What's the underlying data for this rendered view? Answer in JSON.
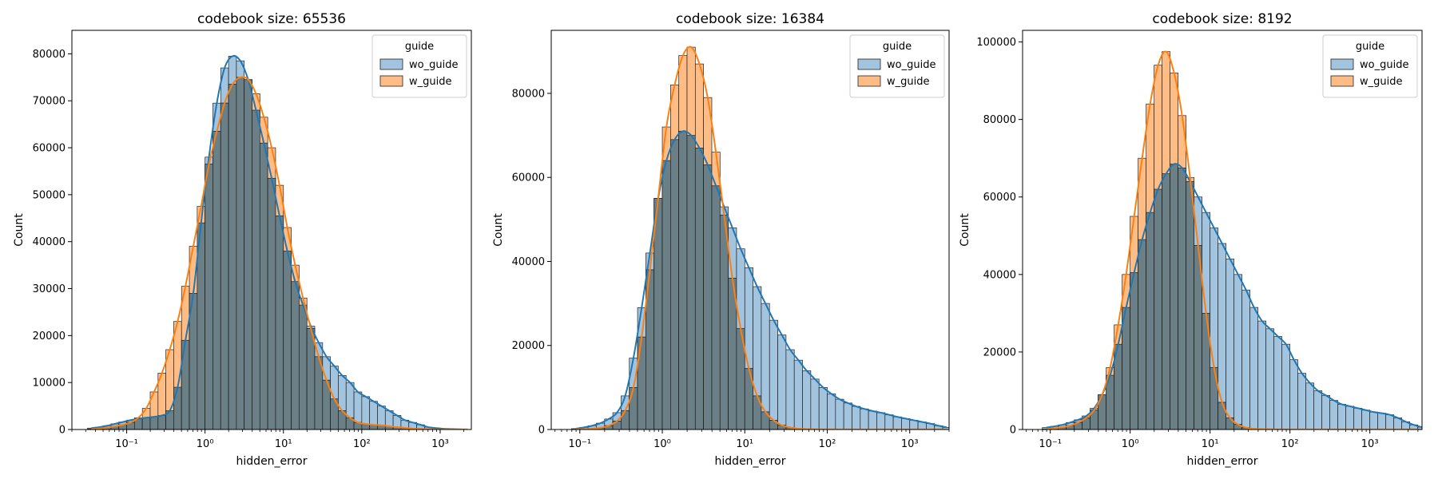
{
  "chart_data": [
    {
      "type": "histogram",
      "title": "codebook size: 65536",
      "xlabel": "hidden_error",
      "ylabel": "Count",
      "xscale": "log",
      "xlim": [
        0.02,
        2500
      ],
      "ylim": [
        0,
        85000
      ],
      "yticks": [
        0,
        10000,
        20000,
        30000,
        40000,
        50000,
        60000,
        70000,
        80000
      ],
      "xticks": [
        {
          "value": 0.1,
          "label": "10⁻¹"
        },
        {
          "value": 1,
          "label": "10⁰"
        },
        {
          "value": 10,
          "label": "10¹"
        },
        {
          "value": 100,
          "label": "10²"
        },
        {
          "value": 1000,
          "label": "10³"
        }
      ],
      "legend": {
        "title": "guide",
        "placement": "top-right",
        "entries": [
          "wo_guide",
          "w_guide"
        ]
      },
      "series": [
        {
          "name": "wo_guide",
          "color": "#1f77b4",
          "bins_log10_start": -1.5,
          "bin_width_log10": 0.1,
          "counts": [
            300,
            500,
            800,
            1200,
            1600,
            2000,
            2300,
            2500,
            2700,
            3000,
            4000,
            9000,
            19000,
            29000,
            44000,
            58000,
            69500,
            77000,
            79500,
            78500,
            74500,
            68000,
            61000,
            53500,
            45500,
            38000,
            31500,
            26500,
            22000,
            18500,
            15500,
            13500,
            11500,
            10000,
            8000,
            7000,
            6000,
            5000,
            4000,
            3000,
            2000,
            1500,
            1000,
            500,
            300,
            150,
            80,
            40,
            20
          ]
        },
        {
          "name": "w_guide",
          "color": "#ff7f0e",
          "bins_log10_start": -1.5,
          "bin_width_log10": 0.1,
          "counts": [
            100,
            200,
            400,
            700,
            1000,
            1500,
            2500,
            4500,
            8000,
            12000,
            17000,
            23000,
            30500,
            39000,
            47500,
            56500,
            63500,
            69500,
            73500,
            75000,
            74500,
            71500,
            66500,
            60000,
            52000,
            43000,
            35000,
            28000,
            21500,
            15500,
            10500,
            6500,
            4000,
            2500,
            1500,
            1200,
            1000,
            900,
            700,
            500,
            350,
            200,
            120,
            60,
            30,
            15,
            8,
            4,
            2
          ]
        }
      ]
    },
    {
      "type": "histogram",
      "title": "codebook size: 16384",
      "xlabel": "hidden_error",
      "ylabel": "Count",
      "xscale": "log",
      "xlim": [
        0.045,
        3000
      ],
      "ylim": [
        0,
        95000
      ],
      "yticks": [
        0,
        20000,
        40000,
        60000,
        80000
      ],
      "xticks": [
        {
          "value": 0.1,
          "label": "10⁻¹"
        },
        {
          "value": 1,
          "label": "10⁰"
        },
        {
          "value": 10,
          "label": "10¹"
        },
        {
          "value": 100,
          "label": "10²"
        },
        {
          "value": 1000,
          "label": "10³"
        }
      ],
      "legend": {
        "title": "guide",
        "placement": "top-right",
        "entries": [
          "wo_guide",
          "w_guide"
        ]
      },
      "series": [
        {
          "name": "wo_guide",
          "color": "#1f77b4",
          "bins_log10_start": -1.1,
          "bin_width_log10": 0.1,
          "counts": [
            200,
            500,
            900,
            1500,
            2500,
            4000,
            8000,
            17000,
            29000,
            42000,
            55000,
            64000,
            69000,
            71000,
            70000,
            67000,
            63000,
            58000,
            53000,
            48000,
            43000,
            38500,
            34000,
            30000,
            26000,
            22500,
            19000,
            16500,
            14000,
            12000,
            10000,
            8500,
            7200,
            6300,
            5500,
            4900,
            4400,
            4000,
            3500,
            3000,
            2600,
            2200,
            1800,
            1400,
            900,
            500
          ]
        },
        {
          "name": "w_guide",
          "color": "#ff7f0e",
          "bins_log10_start": -1.1,
          "bin_width_log10": 0.1,
          "counts": [
            50,
            100,
            200,
            400,
            900,
            2000,
            4500,
            10000,
            22000,
            38000,
            55000,
            72000,
            82000,
            89000,
            91000,
            87000,
            79000,
            66000,
            51000,
            36000,
            24000,
            14500,
            8000,
            4200,
            2200,
            1000,
            500,
            200,
            100,
            50,
            30,
            20,
            10,
            5,
            3,
            2,
            1,
            1,
            1,
            1,
            0,
            0,
            0,
            0,
            0,
            0
          ]
        }
      ]
    },
    {
      "type": "histogram",
      "title": "codebook size: 8192",
      "xlabel": "hidden_error",
      "ylabel": "Count",
      "xscale": "log",
      "xlim": [
        0.045,
        4500
      ],
      "ylim": [
        0,
        103000
      ],
      "yticks": [
        0,
        20000,
        40000,
        60000,
        80000,
        100000
      ],
      "xticks": [
        {
          "value": 0.1,
          "label": "10⁻¹"
        },
        {
          "value": 1,
          "label": "10⁰"
        },
        {
          "value": 10,
          "label": "10¹"
        },
        {
          "value": 100,
          "label": "10²"
        },
        {
          "value": 1000,
          "label": "10³"
        }
      ],
      "legend": {
        "title": "guide",
        "placement": "top-right",
        "entries": [
          "wo_guide",
          "w_guide"
        ]
      },
      "series": [
        {
          "name": "wo_guide",
          "color": "#1f77b4",
          "bins_log10_start": -1.1,
          "bin_width_log10": 0.1,
          "counts": [
            500,
            800,
            1200,
            1800,
            2500,
            3500,
            5500,
            9000,
            14000,
            22000,
            31500,
            40500,
            49000,
            56000,
            62000,
            66000,
            68500,
            67500,
            64000,
            60000,
            56000,
            52000,
            48000,
            44000,
            40000,
            36000,
            31500,
            28000,
            26000,
            24000,
            22000,
            18000,
            14500,
            12000,
            10000,
            8800,
            7500,
            6500,
            6000,
            5500,
            5000,
            4500,
            4200,
            3800,
            3000,
            2000,
            1200,
            600,
            200
          ]
        },
        {
          "name": "w_guide",
          "color": "#ff7f0e",
          "bins_log10_start": -1.1,
          "bin_width_log10": 0.1,
          "counts": [
            100,
            300,
            600,
            1000,
            1800,
            3000,
            5000,
            9000,
            16000,
            27000,
            40000,
            55000,
            70000,
            84000,
            94000,
            97500,
            92000,
            81000,
            65000,
            47500,
            30000,
            16000,
            7000,
            3000,
            1300,
            500,
            200,
            100,
            50,
            20,
            10,
            5,
            3,
            2,
            1,
            1,
            1,
            0,
            0,
            0,
            0,
            0,
            0,
            0,
            0,
            0,
            0,
            0,
            0
          ]
        }
      ]
    }
  ],
  "colors": {
    "wo_guide": "#1f77b4",
    "w_guide": "#ff7f0e",
    "wo_fill": "#a3c4de",
    "w_fill": "#ffbd85",
    "overlap": "#6b7f86"
  }
}
